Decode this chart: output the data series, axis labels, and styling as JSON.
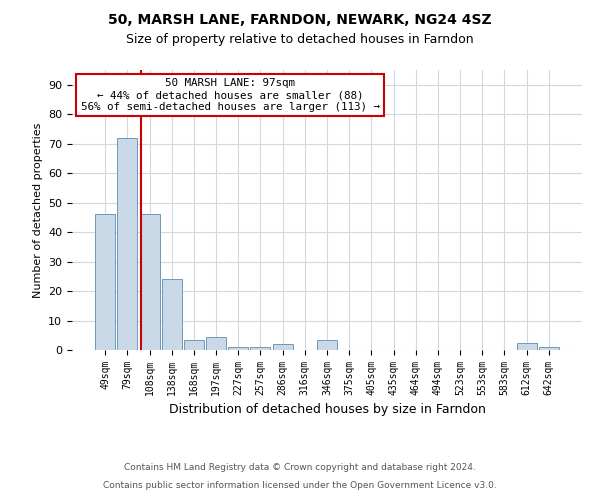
{
  "title1": "50, MARSH LANE, FARNDON, NEWARK, NG24 4SZ",
  "title2": "Size of property relative to detached houses in Farndon",
  "xlabel": "Distribution of detached houses by size in Farndon",
  "ylabel": "Number of detached properties",
  "footer1": "Contains HM Land Registry data © Crown copyright and database right 2024.",
  "footer2": "Contains public sector information licensed under the Open Government Licence v3.0.",
  "categories": [
    "49sqm",
    "79sqm",
    "108sqm",
    "138sqm",
    "168sqm",
    "197sqm",
    "227sqm",
    "257sqm",
    "286sqm",
    "316sqm",
    "346sqm",
    "375sqm",
    "405sqm",
    "435sqm",
    "464sqm",
    "494sqm",
    "523sqm",
    "553sqm",
    "583sqm",
    "612sqm",
    "642sqm"
  ],
  "values": [
    46,
    72,
    46,
    24,
    3.5,
    4.5,
    1,
    1,
    2,
    0,
    3.5,
    0,
    0,
    0,
    0,
    0,
    0,
    0,
    0,
    2.5,
    1
  ],
  "bar_color": "#c9d9e8",
  "bar_edge_color": "#7099b8",
  "annotation_line1": "50 MARSH LANE: 97sqm",
  "annotation_line2": "← 44% of detached houses are smaller (88)",
  "annotation_line3": "56% of semi-detached houses are larger (113) →",
  "ylim": [
    0,
    95
  ],
  "yticks": [
    0,
    10,
    20,
    30,
    40,
    50,
    60,
    70,
    80,
    90
  ],
  "bg_color": "#ffffff",
  "grid_color": "#d0d8e0",
  "annotation_box_edge": "#cc0000",
  "red_line_color": "#cc0000"
}
